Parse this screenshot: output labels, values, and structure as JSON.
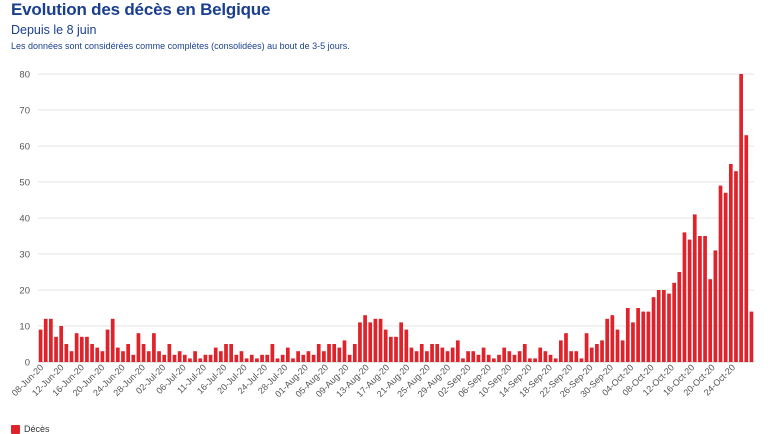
{
  "header": {
    "title": "Evolution des décès en Belgique",
    "subtitle": "Depuis le 8 juin",
    "note": "Les données sont considérées comme complètes (consolidées) au bout de 3-5 jours."
  },
  "colors": {
    "bar": "#e0232b",
    "grid": "#e6e6e6",
    "text": "#555555",
    "title": "#1a3f8f"
  },
  "chart_data": {
    "type": "bar",
    "title": "Evolution des décès en Belgique",
    "xlabel": "",
    "ylabel": "",
    "ylim": [
      0,
      80
    ],
    "yticks": [
      0,
      10,
      20,
      30,
      40,
      50,
      60,
      70,
      80
    ],
    "grid": true,
    "legend": "bottom-left",
    "series": [
      {
        "name": "Décès",
        "values": [
          9,
          12,
          12,
          7,
          10,
          5,
          3,
          8,
          7,
          7,
          5,
          4,
          3,
          9,
          12,
          4,
          3,
          5,
          2,
          8,
          5,
          3,
          8,
          3,
          2,
          5,
          2,
          3,
          2,
          1,
          3,
          1,
          2,
          2,
          4,
          3,
          5,
          5,
          2,
          3,
          1,
          2,
          1,
          2,
          2,
          5,
          1,
          2,
          4,
          1,
          3,
          2,
          3,
          2,
          5,
          3,
          5,
          5,
          4,
          6,
          2,
          5,
          11,
          13,
          11,
          12,
          12,
          9,
          7,
          7,
          11,
          9,
          4,
          3,
          5,
          3,
          5,
          5,
          4,
          3,
          4,
          6,
          1,
          3,
          3,
          2,
          4,
          2,
          1,
          2,
          4,
          3,
          2,
          3,
          5,
          1,
          1,
          4,
          3,
          2,
          1,
          6,
          8,
          3,
          3,
          1,
          8,
          4,
          5,
          6,
          12,
          13,
          9,
          6,
          15,
          11,
          15,
          14,
          14,
          18,
          20,
          20,
          19,
          22,
          25,
          36,
          34,
          41,
          35,
          35,
          23,
          31,
          49,
          47,
          55,
          53,
          80,
          63,
          14
        ]
      }
    ],
    "tick_labels": [
      "08-Jun-20",
      "12-Jun-20",
      "16-Jun-20",
      "20-Jun-20",
      "24-Jun-20",
      "28-Jun-20",
      "02-Jul-20",
      "06-Jul-20",
      "11-Jul-20",
      "16-Jul-20",
      "20-Jul-20",
      "24-Jul-20",
      "28-Jul-20",
      "01-Aug-20",
      "05-Aug-20",
      "09-Aug-20",
      "13-Aug-20",
      "17-Aug-20",
      "21-Aug-20",
      "25-Aug-20",
      "29-Aug-20",
      "02-Sep-20",
      "06-Sep-20",
      "10-Sep-20",
      "14-Sep-20",
      "18-Sep-20",
      "22-Sep-20",
      "26-Sep-20",
      "30-Sep-20",
      "04-Oct-20",
      "08-Oct-20",
      "12-Oct-20",
      "16-Oct-20",
      "20-Oct-20",
      "24-Oct-20"
    ]
  }
}
